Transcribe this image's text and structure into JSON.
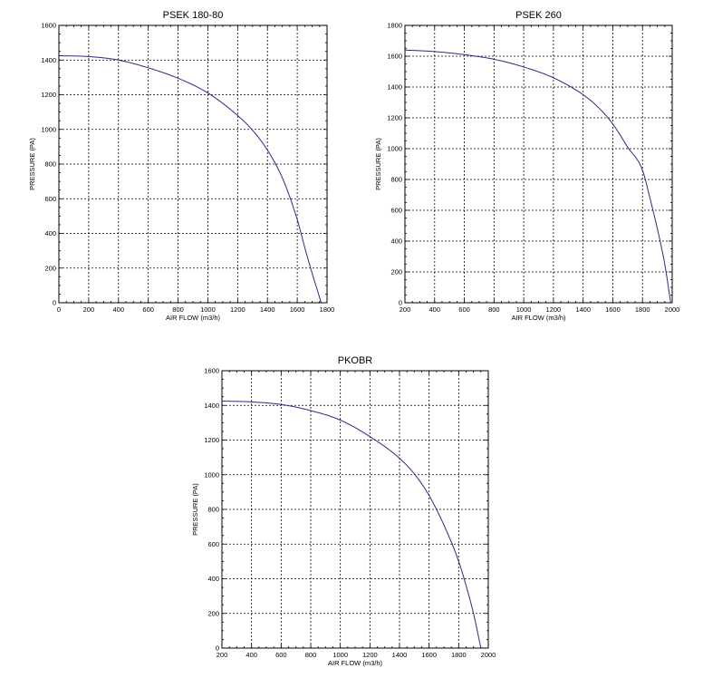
{
  "chart_data": [
    {
      "type": "line",
      "title": "PSEK 180-80",
      "xlabel": "AIR FLOW (m3/h)",
      "ylabel": "PRESSURE (PA)",
      "xlim": [
        0,
        1800
      ],
      "ylim": [
        0,
        1600
      ],
      "xticks": [
        "0",
        "200",
        "400",
        "600",
        "800",
        "1000",
        "1200",
        "1400",
        "1600",
        "1800"
      ],
      "yticks": [
        "0",
        "200",
        "400",
        "600",
        "800",
        "1000",
        "1200",
        "1400",
        "1600"
      ],
      "grid": true,
      "line_color": "#2a2a8c",
      "series": [
        {
          "x": [
            0,
            200,
            400,
            600,
            800,
            1000,
            1200,
            1300,
            1400,
            1500,
            1600,
            1650,
            1700,
            1750,
            1760
          ],
          "y": [
            1425,
            1420,
            1400,
            1355,
            1295,
            1210,
            1080,
            995,
            880,
            720,
            480,
            320,
            170,
            30,
            0
          ]
        }
      ]
    },
    {
      "type": "line",
      "title": "PSEK 260",
      "xlabel": "AIR FLOW (m3/h)",
      "ylabel": "PRESSURE (PA)",
      "xlim": [
        200,
        2000
      ],
      "ylim": [
        0,
        1800
      ],
      "xticks": [
        "200",
        "400",
        "600",
        "800",
        "1000",
        "1200",
        "1400",
        "1600",
        "1800",
        "2000"
      ],
      "yticks": [
        "0",
        "200",
        "400",
        "600",
        "800",
        "1000",
        "1200",
        "1400",
        "1600",
        "1800"
      ],
      "grid": true,
      "line_color": "#2a2a8c",
      "series": [
        {
          "x": [
            200,
            400,
            600,
            800,
            1000,
            1200,
            1400,
            1500,
            1600,
            1700,
            1800,
            1850,
            1900,
            1950,
            1990
          ],
          "y": [
            1640,
            1630,
            1610,
            1580,
            1530,
            1460,
            1350,
            1270,
            1160,
            1010,
            860,
            680,
            480,
            250,
            0
          ]
        }
      ]
    },
    {
      "type": "line",
      "title": "PKOBR",
      "xlabel": "AIR FLOW (m3/h)",
      "ylabel": "PRESSURE (PA)",
      "xlim": [
        200,
        2000
      ],
      "ylim": [
        0,
        1600
      ],
      "xticks": [
        "200",
        "400",
        "600",
        "800",
        "1000",
        "1200",
        "1400",
        "1600",
        "1800",
        "2000"
      ],
      "yticks": [
        "0",
        "200",
        "400",
        "600",
        "800",
        "1000",
        "1200",
        "1400",
        "1600"
      ],
      "grid": true,
      "line_color": "#2a2a8c",
      "series": [
        {
          "x": [
            200,
            400,
            600,
            800,
            1000,
            1200,
            1400,
            1500,
            1600,
            1700,
            1800,
            1850,
            1900,
            1950
          ],
          "y": [
            1425,
            1420,
            1405,
            1370,
            1315,
            1220,
            1095,
            1005,
            880,
            710,
            500,
            360,
            200,
            0
          ]
        }
      ]
    }
  ]
}
